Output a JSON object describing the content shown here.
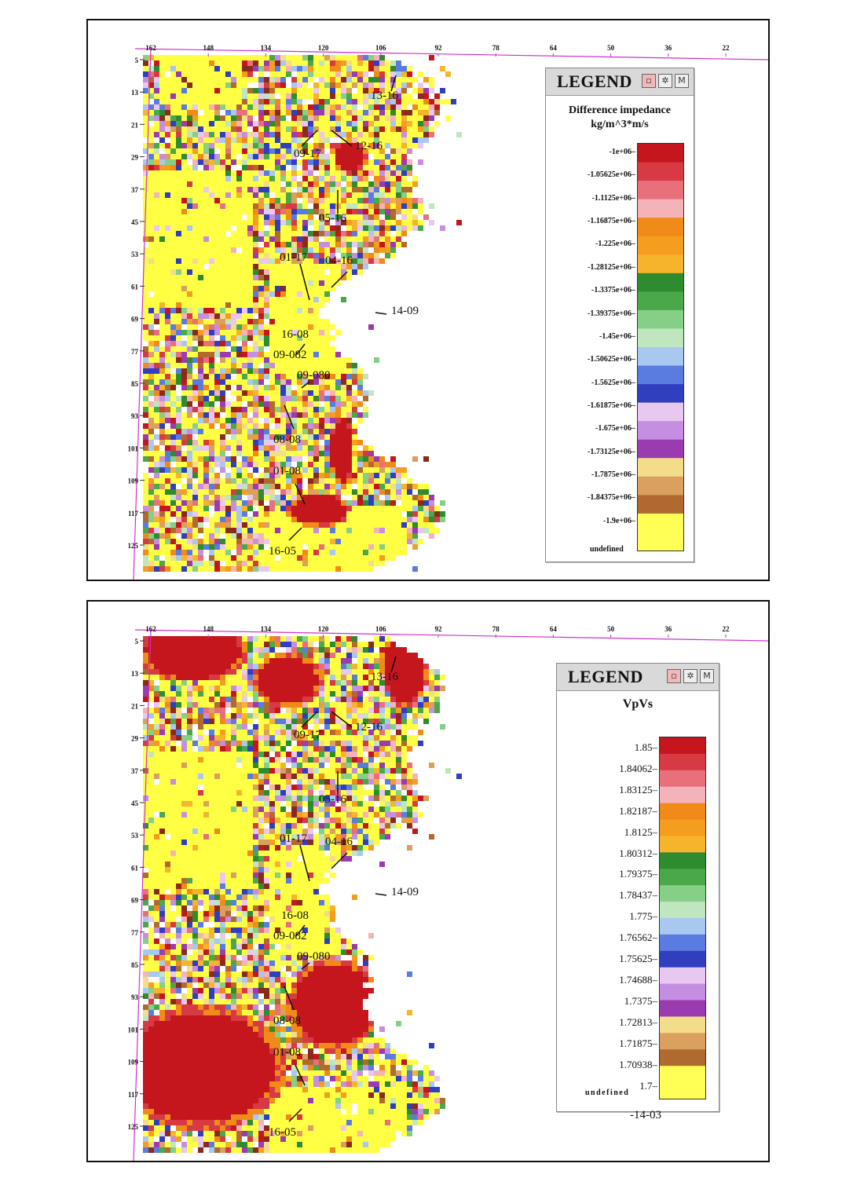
{
  "x_axis_labels": [
    "162",
    "148",
    "134",
    "120",
    "106",
    "92",
    "78",
    "64",
    "50",
    "36",
    "22"
  ],
  "y_axis_labels": [
    "5",
    "13",
    "21",
    "29",
    "37",
    "45",
    "53",
    "61",
    "69",
    "77",
    "85",
    "93",
    "101",
    "109",
    "117",
    "125"
  ],
  "well_labels": [
    "13-16",
    "12-16",
    "09-17",
    "05-16",
    "01-17",
    "04-16",
    "14-09",
    "16-08",
    "09-082",
    "09-080",
    "08-08",
    "01-08",
    "16-05"
  ],
  "panels": [
    {
      "legend": {
        "header": "LEGEND",
        "title_line1": "Difference impedance",
        "title_line2": "kg/m^3*m/s",
        "ticks": [
          "-1e+06",
          "-1.05625e+06",
          "-1.1125e+06",
          "-1.16875e+06",
          "-1.225e+06",
          "-1.28125e+06",
          "-1.3375e+06",
          "-1.39375e+06",
          "-1.45e+06",
          "-1.50625e+06",
          "-1.5625e+06",
          "-1.61875e+06",
          "-1.675e+06",
          "-1.73125e+06",
          "-1.7875e+06",
          "-1.84375e+06",
          "-1.9e+06"
        ],
        "undefined_label": "undefined"
      }
    },
    {
      "legend": {
        "header": "LEGEND",
        "title_line1": "VpVs",
        "ticks": [
          "1.85",
          "1.84062",
          "1.83125",
          "1.82187",
          "1.8125",
          "1.80312",
          "1.79375",
          "1.78437",
          "1.775",
          "1.76562",
          "1.75625",
          "1.74688",
          "1.7375",
          "1.72813",
          "1.71875",
          "1.70938",
          "1.7"
        ],
        "undefined_label": "undefined",
        "footnote": "-14-03"
      }
    }
  ],
  "colors": {
    "frame": "#111111",
    "axis_line": "#cc33cc",
    "background_fill": "#ffff44",
    "colorbar_top": "#d11a1a",
    "colorbar_bottom": "#ffff55"
  }
}
